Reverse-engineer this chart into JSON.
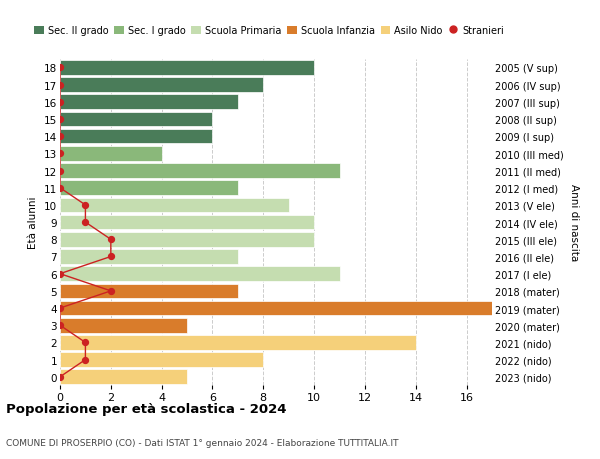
{
  "ages": [
    18,
    17,
    16,
    15,
    14,
    13,
    12,
    11,
    10,
    9,
    8,
    7,
    6,
    5,
    4,
    3,
    2,
    1,
    0
  ],
  "right_labels": [
    "2005 (V sup)",
    "2006 (IV sup)",
    "2007 (III sup)",
    "2008 (II sup)",
    "2009 (I sup)",
    "2010 (III med)",
    "2011 (II med)",
    "2012 (I med)",
    "2013 (V ele)",
    "2014 (IV ele)",
    "2015 (III ele)",
    "2016 (II ele)",
    "2017 (I ele)",
    "2018 (mater)",
    "2019 (mater)",
    "2020 (mater)",
    "2021 (nido)",
    "2022 (nido)",
    "2023 (nido)"
  ],
  "bar_values": [
    10,
    8,
    7,
    6,
    6,
    4,
    11,
    7,
    9,
    10,
    10,
    7,
    11,
    7,
    17,
    5,
    14,
    8,
    5
  ],
  "bar_colors": [
    "#4a7c59",
    "#4a7c59",
    "#4a7c59",
    "#4a7c59",
    "#4a7c59",
    "#8ab87a",
    "#8ab87a",
    "#8ab87a",
    "#c5ddb0",
    "#c5ddb0",
    "#c5ddb0",
    "#c5ddb0",
    "#c5ddb0",
    "#d97c2b",
    "#d97c2b",
    "#d97c2b",
    "#f5d07a",
    "#f5d07a",
    "#f5d07a"
  ],
  "stranieri_values": [
    0,
    0,
    0,
    0,
    0,
    0,
    0,
    0,
    1,
    1,
    2,
    2,
    0,
    2,
    0,
    0,
    1,
    1,
    0
  ],
  "legend_labels": [
    "Sec. II grado",
    "Sec. I grado",
    "Scuola Primaria",
    "Scuola Infanzia",
    "Asilo Nido",
    "Stranieri"
  ],
  "legend_colors": [
    "#4a7c59",
    "#8ab87a",
    "#c5ddb0",
    "#d97c2b",
    "#f5d07a",
    "#cc2222"
  ],
  "title": "Popolazione per età scolastica - 2024",
  "subtitle": "COMUNE DI PROSERPIO (CO) - Dati ISTAT 1° gennaio 2024 - Elaborazione TUTTITALIA.IT",
  "ylabel_left": "Età alunni",
  "ylabel_right": "Anni di nascita",
  "xlim": [
    0,
    17
  ],
  "xticks": [
    0,
    2,
    4,
    6,
    8,
    10,
    12,
    14,
    16
  ],
  "grid_color": "#cccccc",
  "bar_edge_color": "white",
  "background_color": "#ffffff"
}
